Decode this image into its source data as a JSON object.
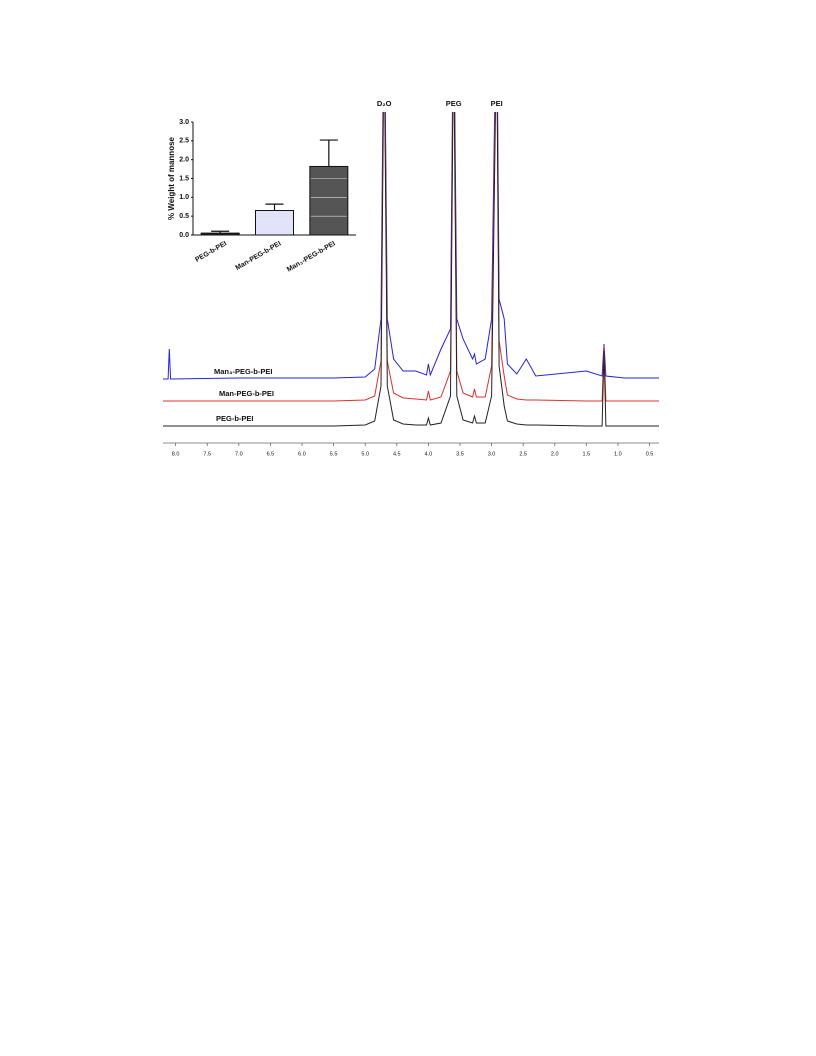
{
  "chart_data": [
    {
      "type": "bar",
      "ylabel": "% Weight of mannose",
      "categories": [
        "PEG-b-PEI",
        "Man-PEG-b-PEI",
        "Man₃-PEG-b-PEI"
      ],
      "values": [
        0.05,
        0.65,
        1.82
      ],
      "errors": [
        0.05,
        0.17,
        0.7
      ],
      "colors": [
        "#222222",
        "#e2e2fa",
        "#555555"
      ],
      "ylim": [
        0,
        3
      ],
      "yticks": [
        {
          "value": 0,
          "label": "0.0"
        },
        0.5,
        {
          "value": 1,
          "label": "1.0"
        },
        1.5,
        {
          "value": 2,
          "label": "2.0"
        },
        2.5,
        {
          "value": 3,
          "label": "3.0"
        }
      ],
      "grid": true
    },
    {
      "type": "line",
      "annotations": [
        {
          "text": "D₂O",
          "x": 4.7
        },
        {
          "text": "PEG",
          "x": 3.6
        },
        {
          "text": "PEI",
          "x": 2.92
        }
      ],
      "x": [
        8.2,
        8.12,
        8.1,
        8.08,
        7.0,
        5.5,
        5.0,
        4.85,
        4.75,
        4.7,
        4.65,
        4.55,
        4.4,
        4.2,
        4.03,
        4.0,
        3.97,
        3.8,
        3.65,
        3.6,
        3.55,
        3.45,
        3.3,
        3.27,
        3.24,
        3.1,
        3.0,
        2.92,
        2.88,
        2.8,
        2.75,
        2.6,
        2.45,
        2.3,
        1.5,
        1.25,
        1.22,
        1.19,
        0.9,
        0.35
      ],
      "xlim": [
        8.2,
        0.35
      ],
      "xticks": [
        {
          "value": 8,
          "label": "8.0"
        },
        7.5,
        {
          "value": 7,
          "label": "7.0"
        },
        6.5,
        {
          "value": 6,
          "label": "6.0"
        },
        5.5,
        {
          "value": 5,
          "label": "5.0"
        },
        4.5,
        {
          "value": 4,
          "label": "4.0"
        },
        3.5,
        {
          "value": 3,
          "label": "3.0"
        },
        2.5,
        {
          "value": 2,
          "label": "2.0"
        },
        1.5,
        {
          "value": 1,
          "label": "1.0"
        },
        0.5
      ],
      "series": [
        {
          "name": "Man₃-PEG-b-PEI",
          "color": "#2424dd",
          "values": [
            0,
            0,
            30,
            0,
            1,
            1,
            2,
            10,
            60,
            400,
            60,
            20,
            8,
            8,
            4,
            15,
            4,
            30,
            50,
            400,
            60,
            40,
            20,
            25,
            15,
            20,
            60,
            400,
            80,
            60,
            15,
            5,
            20,
            3,
            8,
            3,
            35,
            3,
            1,
            1
          ]
        },
        {
          "name": "Man-PEG-b-PEI",
          "color": "#e03030",
          "values": [
            0,
            0,
            0,
            0,
            0,
            0,
            1,
            5,
            40,
            400,
            40,
            8,
            3,
            2,
            1,
            10,
            1,
            4,
            30,
            400,
            30,
            8,
            4,
            12,
            4,
            4,
            35,
            400,
            60,
            25,
            6,
            2,
            1,
            1,
            0,
            0,
            55,
            0,
            0,
            0
          ]
        },
        {
          "name": "PEG-b-PEI",
          "color": "#222222",
          "values": [
            0,
            0,
            0,
            0,
            0,
            0,
            1,
            5,
            40,
            400,
            40,
            6,
            2,
            1,
            1,
            8,
            1,
            3,
            30,
            400,
            30,
            6,
            3,
            10,
            3,
            3,
            30,
            400,
            60,
            20,
            5,
            2,
            1,
            1,
            0,
            0,
            75,
            0,
            0,
            0
          ]
        }
      ]
    }
  ]
}
